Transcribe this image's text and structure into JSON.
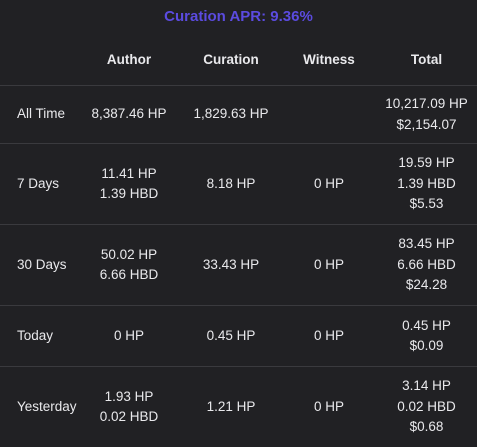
{
  "header": {
    "title": "Curation APR: 9.36%"
  },
  "table": {
    "columns": [
      "",
      "Author",
      "Curation",
      "Witness",
      "Total"
    ],
    "rows": [
      {
        "label": "All Time",
        "author": [
          "8,387.46 HP"
        ],
        "curation": [
          "1,829.63 HP"
        ],
        "witness": [],
        "total": [
          "10,217.09 HP",
          "$2,154.07"
        ]
      },
      {
        "label": "7 Days",
        "author": [
          "11.41 HP",
          "1.39 HBD"
        ],
        "curation": [
          "8.18 HP"
        ],
        "witness": [
          "0 HP"
        ],
        "total": [
          "19.59 HP",
          "1.39 HBD",
          "$5.53"
        ]
      },
      {
        "label": "30 Days",
        "author": [
          "50.02 HP",
          "6.66 HBD"
        ],
        "curation": [
          "33.43 HP"
        ],
        "witness": [
          "0 HP"
        ],
        "total": [
          "83.45 HP",
          "6.66 HBD",
          "$24.28"
        ]
      },
      {
        "label": "Today",
        "author": [
          "0 HP"
        ],
        "curation": [
          "0.45 HP"
        ],
        "witness": [
          "0 HP"
        ],
        "total": [
          "0.45 HP",
          "$0.09"
        ]
      },
      {
        "label": "Yesterday",
        "author": [
          "1.93 HP",
          "0.02 HBD"
        ],
        "curation": [
          "1.21 HP"
        ],
        "witness": [
          "0 HP"
        ],
        "total": [
          "3.14 HP",
          "0.02 HBD",
          "$0.68"
        ]
      }
    ]
  }
}
